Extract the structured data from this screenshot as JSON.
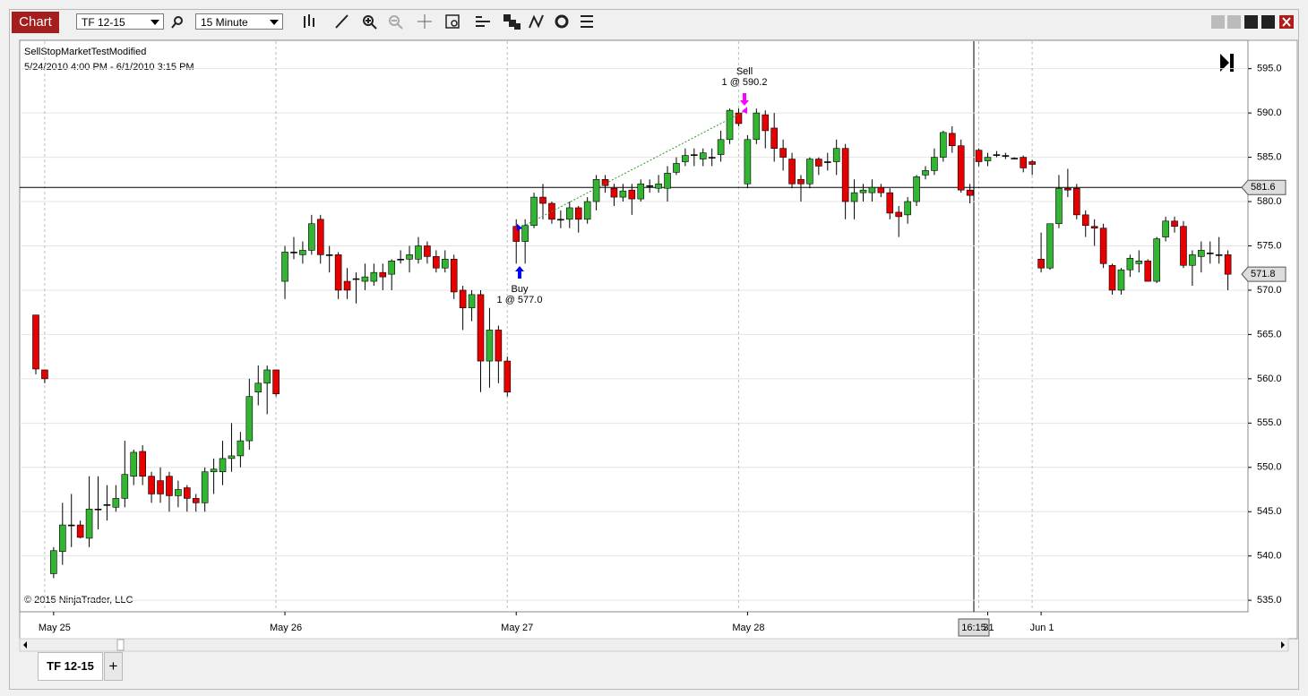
{
  "toolbar": {
    "chart_button": "Chart",
    "instrument": "TF 12-15",
    "interval": "15 Minute"
  },
  "chart_data": {
    "type": "candlestick",
    "title": "SellStopMarketTestModified",
    "subtitle": "5/24/2010 4:00 PM - 6/1/2010 3:15 PM",
    "copyright": "© 2015 NinjaTrader, LLC",
    "categories": [
      null,
      null,
      "May 25",
      null,
      null,
      null,
      null,
      null,
      null,
      null,
      null,
      null,
      null,
      null,
      null,
      null,
      null,
      null,
      null,
      null,
      null,
      null,
      null,
      null,
      null,
      null,
      null,
      null,
      "May 26",
      null,
      null,
      null,
      null,
      null,
      null,
      null,
      null,
      null,
      null,
      null,
      null,
      null,
      null,
      null,
      null,
      null,
      null,
      null,
      null,
      null,
      null,
      null,
      null,
      null,
      "May 27",
      null,
      null,
      null,
      null,
      null,
      null,
      null,
      null,
      null,
      null,
      null,
      null,
      null,
      null,
      null,
      null,
      null,
      null,
      null,
      null,
      null,
      null,
      null,
      null,
      null,
      "May 28",
      null,
      null,
      null,
      null,
      null,
      null,
      null,
      null,
      null,
      null,
      null,
      null,
      null,
      null,
      null,
      null,
      null,
      null,
      null,
      null,
      null,
      null,
      null,
      null,
      null,
      null,
      "31",
      null,
      null,
      null,
      null,
      null,
      "Jun 1",
      null,
      null,
      null,
      null,
      null,
      null,
      null,
      null,
      null,
      null,
      null,
      null,
      null,
      null,
      null,
      null,
      null,
      null,
      null,
      null,
      null
    ],
    "open": [
      567.2,
      561,
      538,
      540.5,
      543.5,
      543.5,
      542,
      545.3,
      545.8,
      545.5,
      546.5,
      549,
      551.8,
      549,
      548.5,
      549,
      546.8,
      547.7,
      546.5,
      546,
      549.5,
      549.5,
      551,
      551.3,
      553,
      558.5,
      559.5,
      561,
      571,
      574.3,
      574,
      574.5,
      578,
      574,
      574,
      571,
      571.3,
      571,
      571,
      572,
      571.8,
      573.5,
      573.5,
      573.5,
      575,
      573.8,
      572.5,
      573.5,
      570,
      568,
      569.5,
      562,
      565.5,
      562,
      577.2,
      575.5,
      577.3,
      580.5,
      579.8,
      578,
      578,
      579.3,
      578,
      580,
      582.5,
      581.5,
      580.5,
      581.3,
      580.3,
      581.8,
      581.5,
      581.5,
      583.3,
      584.5,
      585.3,
      584.8,
      585,
      585.3,
      587,
      590,
      582,
      587,
      589.8,
      588.3,
      586,
      584.8,
      582.5,
      582,
      584.8,
      584.5,
      584.5,
      586,
      580,
      581,
      581,
      581.6,
      581,
      578.8,
      578.5,
      580,
      583,
      583.5,
      585,
      587.7,
      586.3,
      581.3,
      585.8,
      584.6,
      585.3,
      585.2,
      584.9,
      585,
      584.5,
      573.5,
      572.5,
      577.5,
      581.5,
      581.5,
      578.5,
      577.2,
      577,
      572.8,
      570,
      572.3,
      573,
      573.3,
      571,
      576,
      577.8,
      577.2,
      572.8,
      573.8,
      574.2,
      574,
      574
    ],
    "high": [
      567.2,
      561,
      541,
      546,
      547,
      544,
      549,
      549,
      548,
      548,
      553,
      552,
      552.5,
      549.5,
      550,
      549.5,
      548.5,
      548,
      547,
      550,
      551,
      553,
      555,
      554,
      560,
      561.5,
      561.5,
      561,
      575,
      576,
      575.5,
      578.5,
      578.5,
      575,
      574.3,
      572.5,
      572,
      573,
      573,
      573,
      573.5,
      574.5,
      575,
      576,
      575.5,
      574.5,
      574.5,
      574,
      570.5,
      570,
      570,
      568,
      566,
      562.5,
      578,
      578,
      581,
      582,
      580,
      579,
      580,
      579.5,
      580.5,
      583,
      583,
      582,
      582,
      582,
      582.5,
      582.5,
      583,
      584,
      585,
      586,
      586,
      586,
      586,
      588,
      590.5,
      590.5,
      587.5,
      590.5,
      590.3,
      590,
      587,
      585.5,
      583,
      585,
      585,
      585.5,
      587,
      586.5,
      582.5,
      582,
      582.5,
      582,
      581.5,
      579.5,
      580.5,
      583,
      584,
      586,
      588,
      588.5,
      587,
      582,
      586,
      585.5,
      585.7,
      585.5,
      585,
      585.2,
      584.7,
      576.5,
      577.5,
      583,
      583.7,
      582,
      579,
      578,
      577.5,
      573,
      572.5,
      574,
      574.5,
      573.5,
      576,
      578.3,
      578.3,
      577.8,
      574.5,
      575.5,
      575.5,
      576,
      574.5
    ],
    "low": [
      560.5,
      559.5,
      537.5,
      539,
      541,
      542,
      541,
      543,
      544,
      545,
      545.5,
      548,
      548,
      546,
      546,
      545,
      545.5,
      545,
      545,
      545,
      547,
      548,
      549.5,
      550,
      552,
      557,
      556,
      558,
      569,
      573.5,
      573,
      574,
      573,
      572,
      569,
      569,
      568.5,
      570,
      570.5,
      570,
      570,
      573,
      572,
      573,
      573,
      572,
      572,
      569,
      565.5,
      566.5,
      558.5,
      559,
      559.5,
      558,
      573,
      573,
      577,
      578,
      577.5,
      577,
      577,
      576.5,
      577.5,
      579,
      581,
      579.5,
      580,
      578.5,
      580,
      581,
      581,
      580,
      583,
      584,
      584,
      584,
      584,
      584.5,
      586.5,
      588.5,
      581.5,
      586.5,
      586,
      584.5,
      583.5,
      581.5,
      580,
      581.5,
      583,
      583.5,
      583,
      578,
      578,
      580,
      580,
      580.5,
      578,
      576,
      577.5,
      579.5,
      582.5,
      583,
      584.5,
      585.5,
      581,
      579.8,
      584,
      584,
      585,
      584.8,
      584.8,
      583.3,
      583,
      572,
      572.3,
      577,
      580.5,
      578,
      576,
      575,
      572.5,
      569.5,
      569.5,
      571.5,
      572,
      571,
      570.8,
      575.5,
      576.5,
      572.5,
      570.5,
      572,
      573,
      573,
      570
    ],
    "close": [
      561.1,
      560,
      540.6,
      543.5,
      543.5,
      542.1,
      545.3,
      545.3,
      545.8,
      546.5,
      549.2,
      551.7,
      549,
      547,
      547,
      546.8,
      547.5,
      546.5,
      546,
      549.5,
      549.8,
      551,
      551.3,
      553,
      558,
      559.5,
      561,
      558.3,
      574.3,
      574.3,
      574.5,
      577.5,
      574,
      574,
      570,
      570,
      571.3,
      571.5,
      572,
      571.5,
      573.3,
      573.5,
      574,
      575,
      573.8,
      572.5,
      573.5,
      569.8,
      568,
      569.5,
      562,
      565.5,
      562,
      558.5,
      575.5,
      577.3,
      580.5,
      579.8,
      578,
      578,
      579.3,
      578,
      580,
      582.5,
      581.8,
      580.5,
      581.2,
      580.3,
      582,
      581.8,
      582,
      583.2,
      584.3,
      585.2,
      585.3,
      585.5,
      585,
      587,
      590.3,
      588.8,
      587,
      590,
      588,
      586,
      585,
      582,
      582,
      584.8,
      584,
      584.5,
      586,
      580,
      581,
      581.3,
      581.6,
      581,
      578.7,
      578.3,
      580,
      582.8,
      583.5,
      585,
      587.8,
      586.3,
      581.3,
      580.7,
      584.5,
      585,
      585.3,
      585.2,
      584.9,
      583.8,
      584.2,
      572.5,
      577.5,
      581.5,
      581.3,
      578.5,
      577.3,
      577,
      573,
      570,
      572.3,
      573.6,
      573.3,
      571,
      575.8,
      577.8,
      577.2,
      572.8,
      574,
      574.5,
      574.2,
      574,
      571.8
    ],
    "up_color": "#33b533",
    "down_color": "#e60000",
    "ylim": [
      533.7,
      598.1
    ],
    "yticks": [
      {
        "value": 535,
        "label": "535.0"
      },
      {
        "value": 540,
        "label": "540.0"
      },
      {
        "value": 545,
        "label": "545.0"
      },
      {
        "value": 550,
        "label": "550.0"
      },
      {
        "value": 555,
        "label": "555.0"
      },
      {
        "value": 560,
        "label": "560.0"
      },
      {
        "value": 565,
        "label": "565.0"
      },
      {
        "value": 570,
        "label": "570.0"
      },
      {
        "value": 575,
        "label": "575.0"
      },
      {
        "value": 580,
        "label": "580.0"
      },
      {
        "value": 585,
        "label": "585.0"
      },
      {
        "value": 590,
        "label": "590.0"
      },
      {
        "value": 595,
        "label": "595.0"
      }
    ],
    "grid": true,
    "price_line": {
      "value": 581.6,
      "label": "581.6"
    },
    "last_price": {
      "value": 571.8,
      "label": "571.8"
    },
    "crosshair_label": "16:15",
    "trades": [
      {
        "name": "Buy",
        "text": "1 @ 577.0",
        "price": 577.0,
        "color": "#0000ff"
      },
      {
        "name": "Sell",
        "text": "1 @ 590.2",
        "price": 590.2,
        "color": "#ff00ff"
      }
    ]
  },
  "tabs": [
    "TF 12-15",
    "+"
  ]
}
